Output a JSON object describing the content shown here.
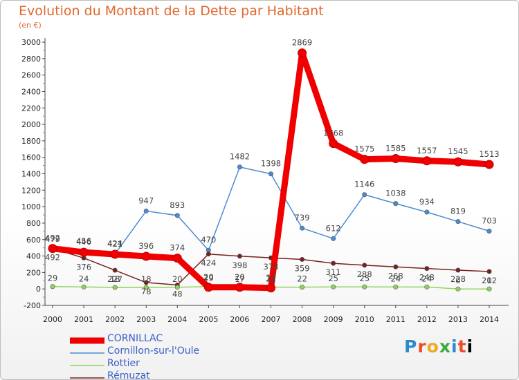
{
  "chart_data": {
    "type": "line",
    "title": "Evolution du Montant de la Dette par Habitant",
    "subtitle": "(en €)",
    "x": [
      "2000",
      "2001",
      "2002",
      "2003",
      "2004",
      "2005",
      "2006",
      "2007",
      "2008",
      "2009",
      "2010",
      "2011",
      "2012",
      "2013",
      "2014"
    ],
    "ylim": [
      -200,
      3000
    ],
    "yticks": [
      -200,
      0,
      200,
      400,
      600,
      800,
      1000,
      1200,
      1400,
      1600,
      1800,
      2000,
      2200,
      2400,
      2600,
      2800,
      3000
    ],
    "grid": false,
    "legend_position": "bottom-left",
    "series": [
      {
        "name": "CORNILLAC",
        "color": "#f00000",
        "emphasis": true,
        "values": [
          492,
          446,
          421,
          396,
          374,
          20,
          20,
          12,
          2869,
          1768,
          1575,
          1585,
          1557,
          1545,
          1513
        ]
      },
      {
        "name": "Cornillon-sur-l'Oule",
        "color": "#4a8ccf",
        "values": [
          479,
          456,
          424,
          947,
          893,
          470,
          1482,
          1398,
          739,
          612,
          1146,
          1038,
          934,
          819,
          703
        ]
      },
      {
        "name": "Rottier",
        "color": "#8fd45a",
        "values": [
          29,
          24,
          18,
          18,
          20,
          29,
          17,
          22,
          22,
          25,
          25,
          24,
          24,
          0,
          0
        ]
      },
      {
        "name": "Rémuzat",
        "color": "#7a1f1f",
        "values": [
          492,
          376,
          227,
          78,
          48,
          424,
          398,
          378,
          359,
          311,
          288,
          268,
          248,
          228,
          212
        ]
      }
    ]
  },
  "logo": {
    "letters": [
      "P",
      "r",
      "o",
      "x",
      "i",
      "t",
      "i"
    ]
  }
}
